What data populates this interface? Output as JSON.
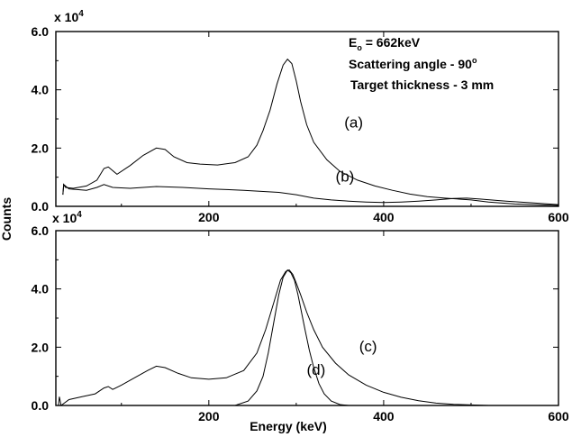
{
  "chart_data": [
    {
      "type": "line",
      "panel": "top",
      "multiplier_label": "x 10",
      "multiplier_exponent": "4",
      "annotation": {
        "energy_prefix": "E",
        "energy_sub": "o",
        "energy_suffix": " = 662keV",
        "angle_prefix": "Scattering angle - 90",
        "angle_sup": "o",
        "thickness": "Target thickness - 3 mm"
      },
      "xlim": [
        25,
        600
      ],
      "ylim": [
        0,
        6.0
      ],
      "x_ticks": [
        200,
        400,
        600
      ],
      "y_ticks": [
        0.0,
        2.0,
        4.0,
        6.0
      ],
      "x_tick_labels": [
        "200",
        "400",
        "600"
      ],
      "y_tick_labels": [
        "0.0",
        "2.0",
        "4.0",
        "6.0"
      ],
      "ylabel": "Counts",
      "series": [
        {
          "name": "(a)",
          "label_pos": [
            355,
            2.7
          ],
          "x": [
            33,
            34,
            36,
            45,
            60,
            72,
            80,
            85,
            95,
            110,
            125,
            140,
            150,
            160,
            175,
            190,
            210,
            230,
            245,
            255,
            262,
            270,
            278,
            285,
            290,
            295,
            300,
            305,
            312,
            320,
            335,
            350,
            370,
            390,
            410,
            430,
            450,
            470,
            490,
            500,
            520,
            550,
            600
          ],
          "y": [
            0.4,
            0.75,
            0.65,
            0.62,
            0.7,
            0.9,
            1.3,
            1.35,
            1.1,
            1.4,
            1.75,
            2.0,
            1.95,
            1.7,
            1.5,
            1.45,
            1.42,
            1.5,
            1.7,
            2.1,
            2.6,
            3.3,
            4.2,
            4.85,
            5.05,
            4.9,
            4.3,
            3.6,
            2.8,
            2.2,
            1.6,
            1.2,
            0.9,
            0.7,
            0.55,
            0.42,
            0.33,
            0.28,
            0.24,
            0.22,
            0.15,
            0.08,
            0.03
          ]
        },
        {
          "name": "(b)",
          "label_pos": [
            345,
            0.85
          ],
          "x": [
            33,
            34,
            40,
            60,
            72,
            80,
            90,
            110,
            140,
            170,
            200,
            240,
            280,
            300,
            320,
            340,
            360,
            380,
            400,
            420,
            440,
            460,
            480,
            495,
            510,
            540,
            570,
            600
          ],
          "y": [
            0.4,
            0.75,
            0.6,
            0.55,
            0.65,
            0.75,
            0.65,
            0.62,
            0.68,
            0.65,
            0.6,
            0.55,
            0.48,
            0.4,
            0.28,
            0.22,
            0.18,
            0.15,
            0.13,
            0.15,
            0.18,
            0.22,
            0.27,
            0.28,
            0.25,
            0.18,
            0.12,
            0.06
          ]
        }
      ]
    },
    {
      "type": "line",
      "panel": "bottom",
      "multiplier_label": "x 10",
      "multiplier_exponent": "4",
      "xlim": [
        25,
        600
      ],
      "ylim": [
        0,
        6.0
      ],
      "x_ticks": [
        200,
        400,
        600
      ],
      "y_ticks": [
        0.0,
        2.0,
        4.0,
        6.0
      ],
      "x_tick_labels": [
        "200",
        "400",
        "600"
      ],
      "y_tick_labels": [
        "0.0",
        "2.0",
        "4.0",
        "6.0"
      ],
      "xlabel": "Energy (keV)",
      "series": [
        {
          "name": "(c)",
          "label_pos": [
            372,
            1.85
          ],
          "x": [
            28,
            29,
            31,
            40,
            55,
            70,
            80,
            85,
            90,
            100,
            115,
            130,
            140,
            150,
            165,
            180,
            200,
            220,
            240,
            255,
            265,
            275,
            282,
            288,
            292,
            296,
            300,
            305,
            312,
            320,
            330,
            345,
            360,
            380,
            400,
            420,
            440,
            460,
            480,
            500,
            520
          ],
          "y": [
            0.0,
            0.3,
            0.0,
            0.2,
            0.3,
            0.4,
            0.6,
            0.65,
            0.55,
            0.7,
            0.95,
            1.2,
            1.35,
            1.3,
            1.1,
            0.95,
            0.9,
            0.95,
            1.2,
            1.8,
            2.6,
            3.6,
            4.3,
            4.6,
            4.65,
            4.5,
            4.2,
            3.8,
            3.2,
            2.6,
            2.0,
            1.45,
            1.05,
            0.7,
            0.45,
            0.28,
            0.16,
            0.08,
            0.04,
            0.02,
            0.0
          ]
        },
        {
          "name": "(d)",
          "label_pos": [
            312,
            1.05
          ],
          "x": [
            230,
            245,
            255,
            262,
            268,
            274,
            280,
            285,
            290,
            294,
            298,
            302,
            306,
            310,
            315,
            320,
            326,
            332,
            340,
            350,
            360
          ],
          "y": [
            0.0,
            0.15,
            0.5,
            1.0,
            1.8,
            2.8,
            3.8,
            4.4,
            4.65,
            4.55,
            4.3,
            3.8,
            3.2,
            2.6,
            1.9,
            1.3,
            0.75,
            0.4,
            0.15,
            0.03,
            0.0
          ]
        }
      ]
    }
  ]
}
